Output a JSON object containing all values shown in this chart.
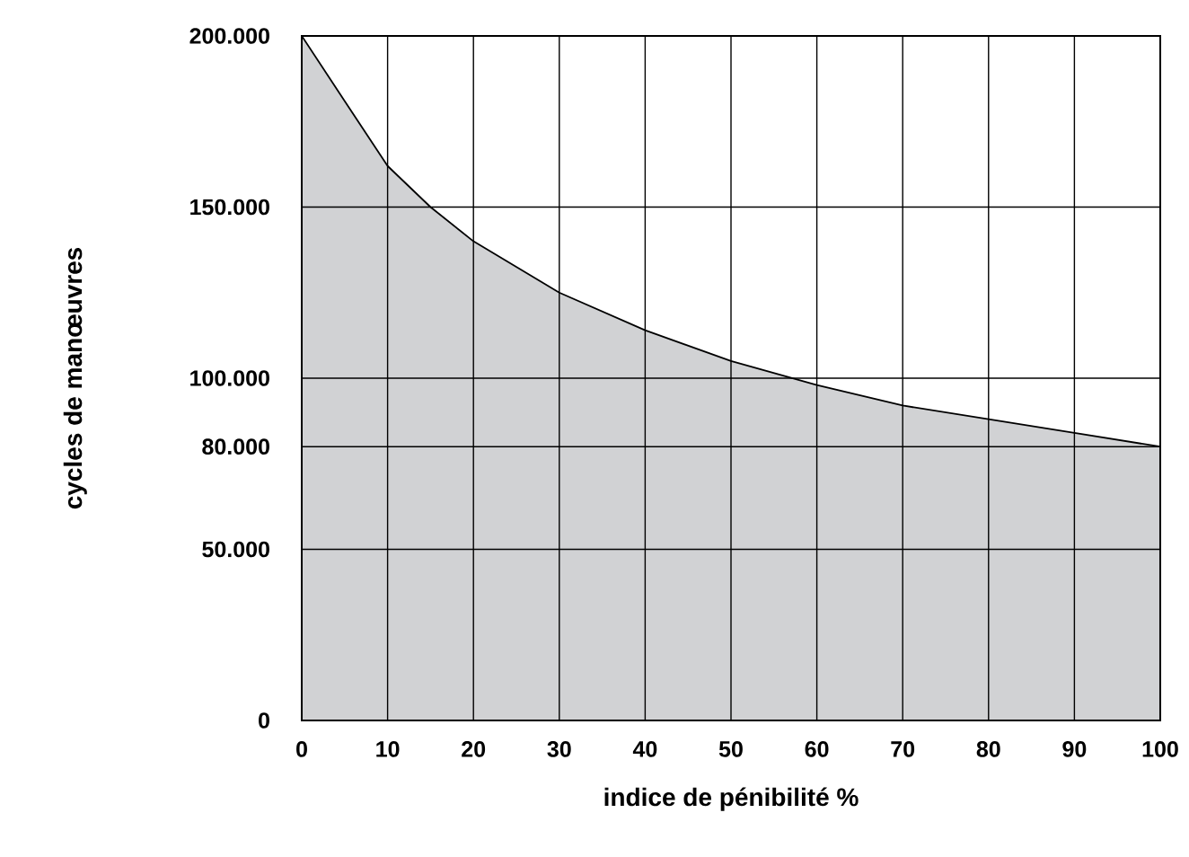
{
  "chart_data": {
    "type": "area",
    "xlabel": "indice de pénibilité %",
    "ylabel": "cycles de manœuvres",
    "x": [
      0,
      5,
      10,
      15,
      20,
      30,
      40,
      50,
      60,
      70,
      80,
      90,
      100
    ],
    "values": [
      200000,
      181000,
      162000,
      150000,
      140000,
      125000,
      114000,
      105000,
      98000,
      92000,
      88000,
      84000,
      80000
    ],
    "color": "#d1d2d4",
    "xlim": [
      0,
      100
    ],
    "ylim": [
      0,
      200000
    ],
    "xticks": [
      0,
      10,
      20,
      30,
      40,
      50,
      60,
      70,
      80,
      90,
      100
    ],
    "yticks": [
      {
        "value": 0,
        "label": "0"
      },
      {
        "value": 50000,
        "label": "50.000"
      },
      {
        "value": 80000,
        "label": "80.000"
      },
      {
        "value": 100000,
        "label": "100.000"
      },
      {
        "value": 150000,
        "label": "150.000"
      },
      {
        "value": 200000,
        "label": "200.000"
      }
    ],
    "grid": true
  }
}
